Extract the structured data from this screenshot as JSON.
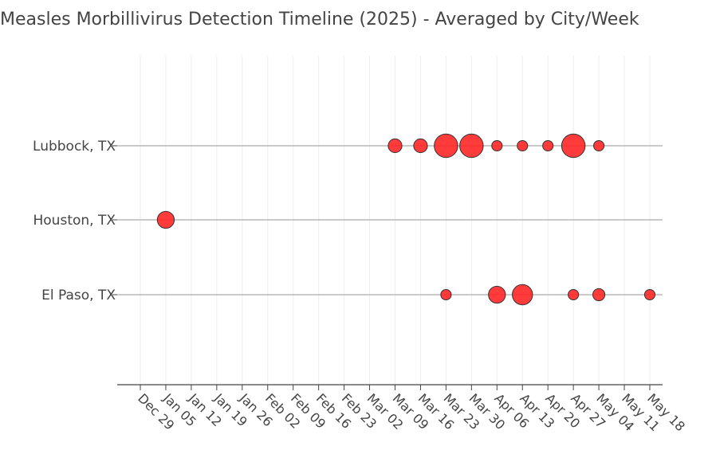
{
  "chart_data": {
    "type": "scatter",
    "title": "Measles Morbillivirus Detection Timeline (2025) - Averaged by City/Week",
    "xlabel": "",
    "ylabel": "",
    "categories_y": [
      "Lubbock, TX",
      "Houston, TX",
      "El Paso, TX"
    ],
    "x_ticks": [
      "Dec 29",
      "Jan 05",
      "Jan 12",
      "Jan 19",
      "Jan 26",
      "Feb 02",
      "Feb 09",
      "Feb 16",
      "Feb 23",
      "Mar 02",
      "Mar 09",
      "Mar 16",
      "Mar 23",
      "Mar 30",
      "Apr 06",
      "Apr 13",
      "Apr 20",
      "Apr 27",
      "May 04",
      "May 11",
      "May 18"
    ],
    "grid": true,
    "marker_color": "#ff2020",
    "series": [
      {
        "y": "Lubbock, TX",
        "points": [
          {
            "x": "Mar 09",
            "size": 2
          },
          {
            "x": "Mar 16",
            "size": 2
          },
          {
            "x": "Mar 23",
            "size": 5
          },
          {
            "x": "Mar 30",
            "size": 5
          },
          {
            "x": "Apr 06",
            "size": 1
          },
          {
            "x": "Apr 13",
            "size": 1
          },
          {
            "x": "Apr 20",
            "size": 1
          },
          {
            "x": "Apr 27",
            "size": 5
          },
          {
            "x": "May 04",
            "size": 1
          }
        ]
      },
      {
        "y": "Houston, TX",
        "points": [
          {
            "x": "Jan 05",
            "size": 3
          }
        ]
      },
      {
        "y": "El Paso, TX",
        "points": [
          {
            "x": "Mar 23",
            "size": 1
          },
          {
            "x": "Apr 06",
            "size": 3
          },
          {
            "x": "Apr 13",
            "size": 4
          },
          {
            "x": "Apr 27",
            "size": 1
          },
          {
            "x": "May 04",
            "size": 1.5
          },
          {
            "x": "May 18",
            "size": 1
          }
        ]
      }
    ]
  }
}
